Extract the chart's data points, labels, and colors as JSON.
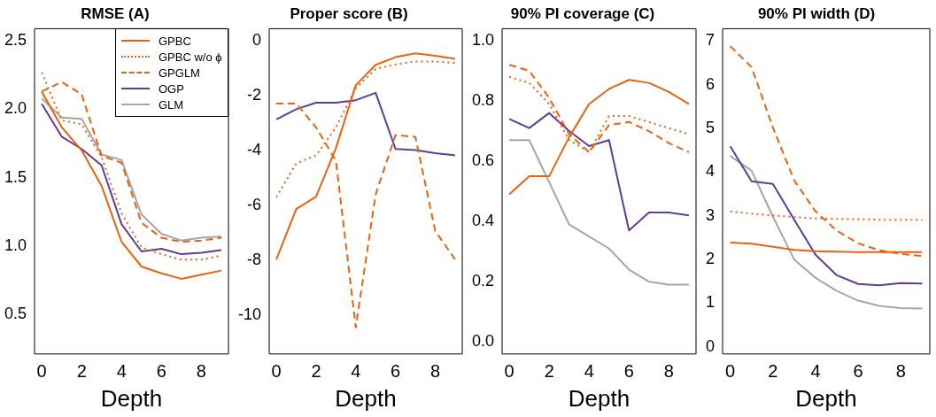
{
  "chart_data": [
    {
      "type": "line",
      "title": "RMSE (A)",
      "xlabel": "Depth",
      "x": [
        0,
        1,
        2,
        3,
        4,
        5,
        6,
        7,
        8,
        9
      ],
      "xlim": [
        -0.36,
        9.36
      ],
      "xticks": [
        0,
        2,
        4,
        6,
        8
      ],
      "ylim": [
        0.21,
        2.59
      ],
      "yticks": [
        0.5,
        {
          "value": 1,
          "label": "1.0"
        },
        1.5,
        {
          "value": 2,
          "label": "2.0"
        },
        2.5
      ],
      "grid": false,
      "legend": "top right",
      "series": [
        {
          "name": "GPBC",
          "color": "#e8620f",
          "line_style": "solid",
          "values": [
            2.13,
            1.87,
            1.7,
            1.44,
            1.03,
            0.85,
            0.8,
            0.76,
            0.79,
            0.82
          ]
        },
        {
          "name": "GPBC w/o ϕ",
          "color": "#e8620f",
          "line_style": "dotted",
          "values": [
            2.27,
            1.92,
            1.89,
            1.65,
            1.24,
            0.99,
            0.94,
            0.9,
            0.9,
            0.93
          ]
        },
        {
          "name": "GPGLM",
          "color": "#e8620f",
          "line_style": "dashed",
          "values": [
            2.13,
            2.2,
            2.11,
            1.66,
            1.61,
            1.17,
            1.06,
            1.03,
            1.04,
            1.06
          ]
        },
        {
          "name": "OGP",
          "color": "#5e3c99",
          "line_style": "solid",
          "values": [
            2.04,
            1.8,
            1.71,
            1.59,
            1.16,
            0.96,
            0.98,
            0.94,
            0.95,
            0.97
          ]
        },
        {
          "name": "GLM",
          "color": "#a6a6a6",
          "line_style": "solid",
          "values": [
            2.08,
            1.94,
            1.93,
            1.67,
            1.63,
            1.23,
            1.09,
            1.04,
            1.06,
            1.07
          ]
        }
      ]
    },
    {
      "type": "line",
      "title": "Proper score (B)",
      "xlabel": "Depth",
      "x": [
        0,
        1,
        2,
        3,
        4,
        5,
        6,
        7,
        8,
        9
      ],
      "xlim": [
        -0.36,
        9.36
      ],
      "xticks": [
        0,
        2,
        4,
        6,
        8
      ],
      "ylim": [
        -11.43,
        0.44
      ],
      "yticks": [
        -10,
        -8,
        -6,
        -4,
        -2,
        0
      ],
      "grid": false,
      "series": [
        {
          "color": "#e8620f",
          "line_style": "solid",
          "values": [
            -7.98,
            -6.14,
            -5.69,
            -3.92,
            -1.62,
            -0.88,
            -0.6,
            -0.46,
            -0.55,
            -0.66
          ]
        },
        {
          "color": "#e8620f",
          "line_style": "dotted",
          "values": [
            -5.71,
            -4.48,
            -4.18,
            -3.16,
            -1.73,
            -1.03,
            -0.86,
            -0.76,
            -0.76,
            -0.81
          ]
        },
        {
          "color": "#e8620f",
          "line_style": "dashed",
          "values": [
            -2.29,
            -2.29,
            -3.16,
            -4.38,
            -10.46,
            -5.61,
            -3.44,
            -3.51,
            -6.94,
            -7.98
          ]
        },
        {
          "color": "#5e3c99",
          "line_style": "solid",
          "values": [
            -2.87,
            -2.5,
            -2.26,
            -2.26,
            -2.17,
            -1.9,
            -3.95,
            -3.99,
            -4.1,
            -4.18
          ]
        }
      ]
    },
    {
      "type": "line",
      "title": "90% PI coverage (C)",
      "xlabel": "Depth",
      "x": [
        0,
        1,
        2,
        3,
        4,
        5,
        6,
        7,
        8,
        9
      ],
      "xlim": [
        -0.36,
        9.36
      ],
      "xticks": [
        0,
        2,
        4,
        6,
        8
      ],
      "ylim": [
        -0.04,
        1.04
      ],
      "yticks": [
        {
          "value": 0,
          "label": "0.0"
        },
        0.2,
        0.4,
        0.6,
        0.8,
        {
          "value": 1,
          "label": "1.0"
        }
      ],
      "grid": false,
      "series": [
        {
          "color": "#e8620f",
          "line_style": "solid",
          "values": [
            0.49,
            0.55,
            0.55,
            0.68,
            0.79,
            0.84,
            0.87,
            0.86,
            0.83,
            0.79
          ]
        },
        {
          "color": "#e8620f",
          "line_style": "dotted",
          "values": [
            0.88,
            0.86,
            0.79,
            0.67,
            0.63,
            0.75,
            0.75,
            0.73,
            0.71,
            0.69
          ]
        },
        {
          "color": "#e8620f",
          "line_style": "dashed",
          "values": [
            0.92,
            0.9,
            0.81,
            0.69,
            0.63,
            0.72,
            0.73,
            0.7,
            0.66,
            0.63
          ]
        },
        {
          "color": "#5e3c99",
          "line_style": "solid",
          "values": [
            0.74,
            0.71,
            0.76,
            0.7,
            0.65,
            0.67,
            0.37,
            0.43,
            0.43,
            0.42
          ]
        },
        {
          "color": "#a6a6a6",
          "line_style": "solid",
          "values": [
            0.67,
            0.67,
            0.53,
            0.39,
            0.35,
            0.31,
            0.24,
            0.2,
            0.19,
            0.19
          ]
        }
      ]
    },
    {
      "type": "line",
      "title": "90% PI width (D)",
      "xlabel": "Depth",
      "x": [
        0,
        1,
        2,
        3,
        4,
        5,
        6,
        7,
        8,
        9
      ],
      "xlim": [
        -0.36,
        9.36
      ],
      "xticks": [
        0,
        2,
        4,
        6,
        8
      ],
      "ylim": [
        -0.16,
        7.28
      ],
      "yticks": [
        0,
        1,
        2,
        3,
        4,
        5,
        6,
        7
      ],
      "grid": false,
      "series": [
        {
          "color": "#e8620f",
          "line_style": "solid",
          "values": [
            2.39,
            2.36,
            2.29,
            2.22,
            2.19,
            2.18,
            2.17,
            2.17,
            2.17,
            2.17
          ]
        },
        {
          "color": "#e8620f",
          "line_style": "dotted",
          "values": [
            3.1,
            3.05,
            3.01,
            2.97,
            2.94,
            2.93,
            2.92,
            2.91,
            2.91,
            2.91
          ]
        },
        {
          "color": "#e8620f",
          "line_style": "dashed",
          "values": [
            6.88,
            6.4,
            5.02,
            3.81,
            3.1,
            2.66,
            2.37,
            2.21,
            2.13,
            2.08
          ]
        },
        {
          "color": "#5e3c99",
          "line_style": "solid",
          "values": [
            4.59,
            3.79,
            3.73,
            2.91,
            2.11,
            1.64,
            1.44,
            1.41,
            1.46,
            1.45
          ]
        },
        {
          "color": "#a6a6a6",
          "line_style": "solid",
          "values": [
            4.37,
            4.03,
            2.98,
            2.0,
            1.58,
            1.28,
            1.06,
            0.94,
            0.89,
            0.88
          ]
        }
      ]
    }
  ]
}
